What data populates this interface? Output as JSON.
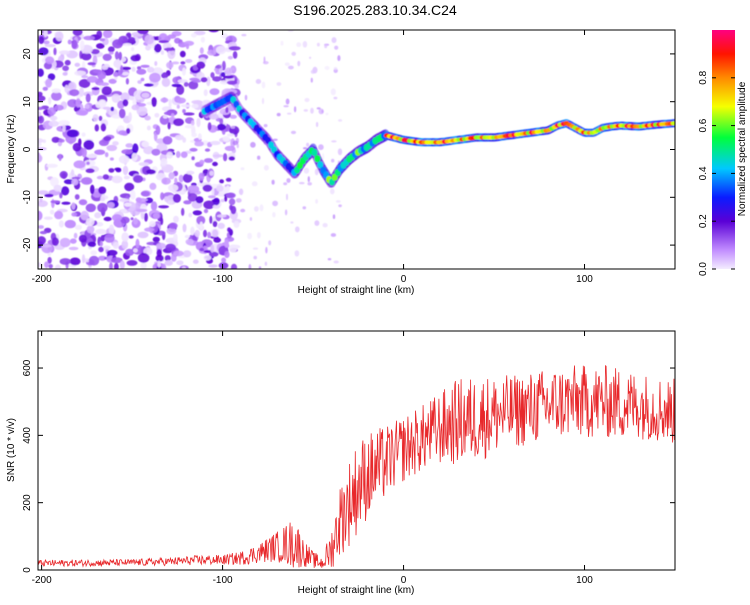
{
  "title": "S196.2025.283.10.34.C24",
  "chart_data": [
    {
      "type": "heatmap",
      "id": "spectrogram",
      "xlabel": "Height of straight line (km)",
      "ylabel": "Frequency (Hz)",
      "xlim": [
        -202,
        150
      ],
      "ylim": [
        -25,
        25
      ],
      "xticks": [
        -200,
        -100,
        0,
        100
      ],
      "yticks": [
        -20,
        -10,
        0,
        10,
        20
      ],
      "ridge": {
        "x": [
          -110,
          -100,
          -95,
          -90,
          -85,
          -80,
          -75,
          -70,
          -65,
          -60,
          -55,
          -50,
          -45,
          -40,
          -35,
          -30,
          -25,
          -20,
          -15,
          -10,
          -5,
          0,
          10,
          20,
          30,
          40,
          50,
          60,
          70,
          80,
          85,
          90,
          95,
          100,
          105,
          110,
          115,
          120,
          130,
          140,
          150
        ],
        "y": [
          8,
          10,
          11,
          8,
          6,
          4,
          2,
          -1,
          -3,
          -5,
          -2,
          0,
          -4,
          -7,
          -4,
          -2,
          -0.5,
          0.5,
          2,
          3,
          2.5,
          2,
          1.5,
          1.5,
          2,
          2.5,
          2.5,
          3,
          3.5,
          4,
          5,
          5.5,
          4.5,
          3.5,
          3.5,
          4.5,
          4.8,
          5,
          4.8,
          5.2,
          5.5
        ]
      },
      "colorbar": {
        "label": "Normalized spectral amplitude",
        "ticks": [
          0.0,
          0.2,
          0.4,
          0.6,
          0.8
        ],
        "tick_labels": [
          "0.0",
          "0.2",
          "0.4",
          "0.6",
          "0.8"
        ],
        "range": [
          0,
          1
        ]
      }
    },
    {
      "type": "line",
      "id": "snr",
      "xlabel": "Height of straight line (km)",
      "ylabel": "SNR (10 * v/v)",
      "xlim": [
        -202,
        150
      ],
      "ylim": [
        0,
        710
      ],
      "xticks": [
        -200,
        -100,
        0,
        100
      ],
      "yticks": [
        0,
        200,
        400,
        600
      ],
      "series": [
        {
          "name": "SNR",
          "color": "#e8282b",
          "envelope_x": [
            -202,
            -150,
            -130,
            -110,
            -100,
            -90,
            -80,
            -70,
            -60,
            -55,
            -50,
            -45,
            -40,
            -35,
            -30,
            -25,
            -20,
            -15,
            -10,
            -5,
            0,
            10,
            20,
            30,
            40,
            50,
            60,
            70,
            80,
            90,
            100,
            110,
            120,
            130,
            140,
            150
          ],
          "envelope_mean": [
            20,
            22,
            25,
            30,
            30,
            35,
            50,
            70,
            80,
            50,
            30,
            20,
            60,
            150,
            200,
            250,
            280,
            300,
            320,
            340,
            360,
            390,
            420,
            440,
            450,
            460,
            470,
            480,
            490,
            500,
            500,
            500,
            495,
            490,
            480,
            470
          ],
          "envelope_amp": [
            10,
            10,
            12,
            15,
            15,
            20,
            30,
            45,
            80,
            40,
            25,
            20,
            60,
            110,
            130,
            140,
            130,
            120,
            110,
            100,
            100,
            100,
            110,
            130,
            130,
            120,
            110,
            110,
            110,
            110,
            110,
            110,
            110,
            100,
            100,
            100
          ]
        }
      ]
    }
  ],
  "colors": {
    "axis": "#000000",
    "snr_line": "#e8282b",
    "background": "#ffffff"
  }
}
